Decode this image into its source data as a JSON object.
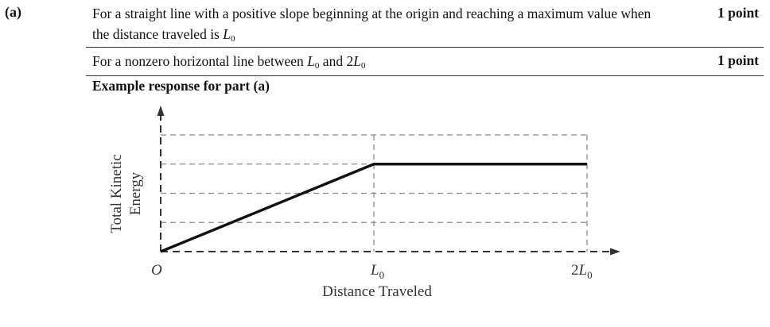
{
  "part_label": "(a)",
  "rows": [
    {
      "text_before": "For a straight line with a positive slope beginning at the origin and reaching a maximum value when the distance traveled is ",
      "var": "L",
      "sub": "0",
      "points": "1 point"
    },
    {
      "text_before": "For a nonzero horizontal line between ",
      "var1": "L",
      "sub1": "0",
      "mid": " and 2",
      "var2": "L",
      "sub2": "0",
      "points": "1 point"
    }
  ],
  "example_heading": "Example response for part (a)",
  "chart_data": {
    "type": "line",
    "x_tick_labels": [
      "O",
      "L0",
      "2L0"
    ],
    "xlabel": "Distance Traveled",
    "ylabel": "Total Kinetic Energy",
    "x_units": "L0",
    "y_relative_units": "gridline steps (4 equal divisions)",
    "xlim": [
      0,
      2
    ],
    "ylim": [
      0,
      4
    ],
    "grid": true,
    "series": [
      {
        "x": [
          0,
          1,
          2
        ],
        "y": [
          0,
          3,
          3
        ]
      }
    ],
    "labels": {
      "origin": "O",
      "L0_var": "L",
      "L0_sub": "0",
      "twoL0_prefix": "2",
      "twoL0_var": "L",
      "twoL0_sub": "0",
      "ylabel_line1": "Total Kinetic",
      "ylabel_line2": "Energy"
    }
  }
}
